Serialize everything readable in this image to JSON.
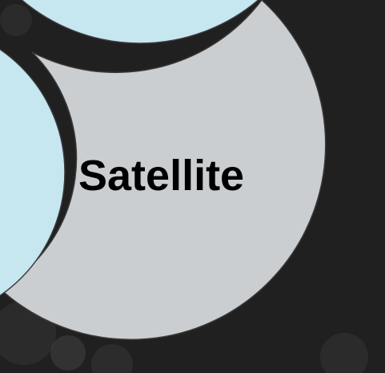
{
  "diagram": {
    "center_label": "Satellite",
    "colors": {
      "background": "#1b1b1b",
      "center_fill": "#cbced1",
      "neighbor_fill": "#c6e6f0",
      "stroke": "#3a3a3a",
      "label": "#000000"
    }
  }
}
